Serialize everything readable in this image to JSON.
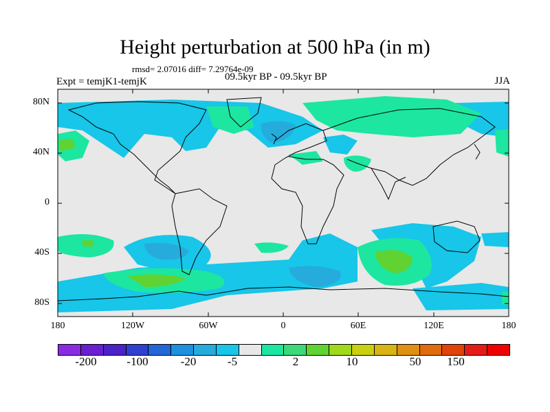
{
  "title": "Height perturbation at 500 hPa (in m)",
  "stats": "rmsd= 2.07016 diff= 7.29764e-09",
  "experiment": "Expt = temjK1-temjK",
  "period": "09.5kyr BP - 09.5kyr BP",
  "season": "JJA",
  "map": {
    "projection": "cylindrical-equidistant",
    "lon_range": [
      -180,
      180
    ],
    "lat_range": [
      -90,
      90
    ],
    "background_color": "#e8e8e8",
    "coastline_color": "#000000",
    "lat_labels": [
      "80N",
      "40N",
      "0",
      "40S",
      "80S"
    ],
    "lon_labels": [
      "180",
      "120W",
      "60W",
      "0",
      "60E",
      "120E",
      "180"
    ]
  },
  "colorbar": {
    "colors": [
      "#8a2be2",
      "#6a1fd0",
      "#4b22c8",
      "#2f40d0",
      "#2266d8",
      "#1e90e0",
      "#25acdc",
      "#17c6e8",
      "#e8e8e8",
      "#1de6a0",
      "#3cd87a",
      "#60d232",
      "#a0d81c",
      "#c8d010",
      "#d8b414",
      "#e09012",
      "#e06c0c",
      "#e04408",
      "#e41c18",
      "#f00000"
    ],
    "labels": [
      "-200",
      "-100",
      "-20",
      "-5",
      "2",
      "10",
      "50",
      "150"
    ]
  }
}
